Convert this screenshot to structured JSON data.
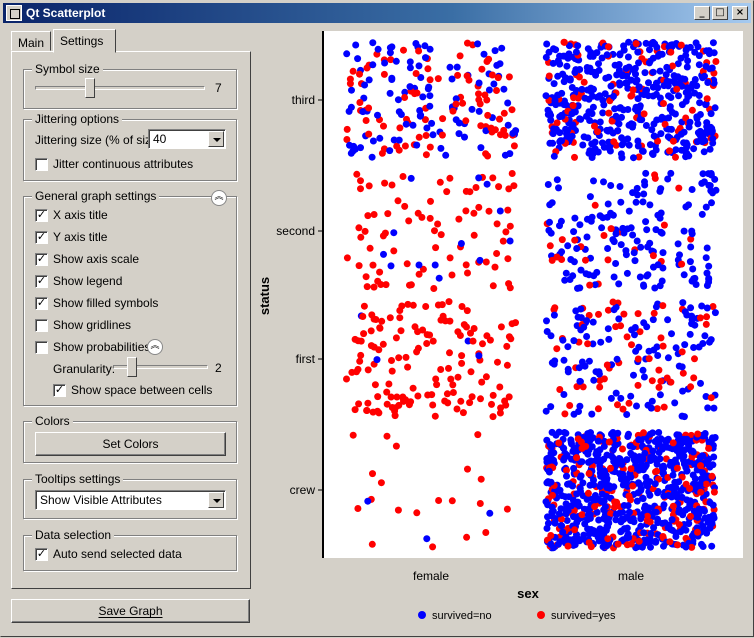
{
  "window": {
    "title": "Qt Scatterplot"
  },
  "tabs": [
    {
      "label": "Main"
    },
    {
      "label": "Settings"
    }
  ],
  "symbol_size": {
    "title": "Symbol size",
    "value": "7",
    "level": 0.3
  },
  "jittering": {
    "title": "Jittering options",
    "size_label": "Jittering size (% of size)",
    "size_value": "40",
    "continuous_label": "Jitter continuous attributes",
    "continuous_checked": false
  },
  "general": {
    "title": "General graph settings",
    "items": [
      {
        "label": "X axis title",
        "checked": true
      },
      {
        "label": "Y axis title",
        "checked": true
      },
      {
        "label": "Show axis scale",
        "checked": true
      },
      {
        "label": "Show legend",
        "checked": true
      },
      {
        "label": "Show filled symbols",
        "checked": true
      },
      {
        "label": "Show gridlines",
        "checked": false
      },
      {
        "label": "Show probabilities",
        "checked": false
      }
    ],
    "granularity_label": "Granularity:",
    "granularity_value": "2",
    "granularity_level": 0.15,
    "space_label": "Show space between cells",
    "space_checked": true
  },
  "colors": {
    "title": "Colors",
    "button": "Set Colors"
  },
  "tooltips": {
    "title": "Tooltips settings",
    "value": "Show Visible Attributes"
  },
  "data_selection": {
    "title": "Data selection",
    "auto_label": "Auto send selected data",
    "auto_checked": true
  },
  "save_button": "Save Graph",
  "chart_data": {
    "type": "scatter",
    "xlabel": "sex",
    "ylabel": "status",
    "x_categories": [
      "female",
      "male"
    ],
    "y_categories": [
      "crew",
      "first",
      "second",
      "third"
    ],
    "series": [
      {
        "name": "survived=no",
        "color": "#0000ff"
      },
      {
        "name": "survived=yes",
        "color": "#ff0000"
      }
    ],
    "cells": [
      {
        "x": "female",
        "y": "third",
        "no": 106,
        "yes": 90
      },
      {
        "x": "male",
        "y": "third",
        "no": 422,
        "yes": 88
      },
      {
        "x": "female",
        "y": "second",
        "no": 13,
        "yes": 80
      },
      {
        "x": "male",
        "y": "second",
        "no": 154,
        "yes": 25
      },
      {
        "x": "female",
        "y": "first",
        "no": 4,
        "yes": 141
      },
      {
        "x": "male",
        "y": "first",
        "no": 118,
        "yes": 62
      },
      {
        "x": "female",
        "y": "crew",
        "no": 3,
        "yes": 20
      },
      {
        "x": "male",
        "y": "crew",
        "no": 670,
        "yes": 192
      }
    ],
    "legend_position": "bottom",
    "grid": false
  }
}
